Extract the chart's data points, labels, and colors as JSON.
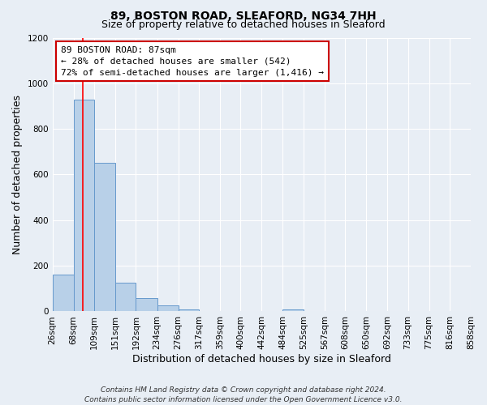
{
  "title": "89, BOSTON ROAD, SLEAFORD, NG34 7HH",
  "subtitle": "Size of property relative to detached houses in Sleaford",
  "xlabel": "Distribution of detached houses by size in Sleaford",
  "ylabel": "Number of detached properties",
  "bin_edges": [
    26,
    68,
    109,
    151,
    192,
    234,
    276,
    317,
    359,
    400,
    442,
    484,
    525,
    567,
    608,
    650,
    692,
    733,
    775,
    816,
    858
  ],
  "bin_labels": [
    "26sqm",
    "68sqm",
    "109sqm",
    "151sqm",
    "192sqm",
    "234sqm",
    "276sqm",
    "317sqm",
    "359sqm",
    "400sqm",
    "442sqm",
    "484sqm",
    "525sqm",
    "567sqm",
    "608sqm",
    "650sqm",
    "692sqm",
    "733sqm",
    "775sqm",
    "816sqm",
    "858sqm"
  ],
  "bar_heights": [
    160,
    930,
    650,
    125,
    60,
    28,
    10,
    0,
    0,
    0,
    0,
    10,
    0,
    0,
    0,
    0,
    0,
    0,
    0,
    0
  ],
  "bar_color": "#b8d0e8",
  "bar_edge_color": "#6699cc",
  "ylim": [
    0,
    1200
  ],
  "yticks": [
    0,
    200,
    400,
    600,
    800,
    1000,
    1200
  ],
  "red_line_x": 87,
  "annotation_line1": "89 BOSTON ROAD: 87sqm",
  "annotation_line2": "← 28% of detached houses are smaller (542)",
  "annotation_line3": "72% of semi-detached houses are larger (1,416) →",
  "annotation_box_color": "#ffffff",
  "annotation_box_edge_color": "#cc0000",
  "footer_line1": "Contains HM Land Registry data © Crown copyright and database right 2024.",
  "footer_line2": "Contains public sector information licensed under the Open Government Licence v3.0.",
  "background_color": "#e8eef5",
  "plot_bg_color": "#e8eef5",
  "grid_color": "#ffffff",
  "title_fontsize": 10,
  "subtitle_fontsize": 9,
  "axis_label_fontsize": 9,
  "tick_fontsize": 7.5,
  "annotation_fontsize": 8,
  "footer_fontsize": 6.5
}
